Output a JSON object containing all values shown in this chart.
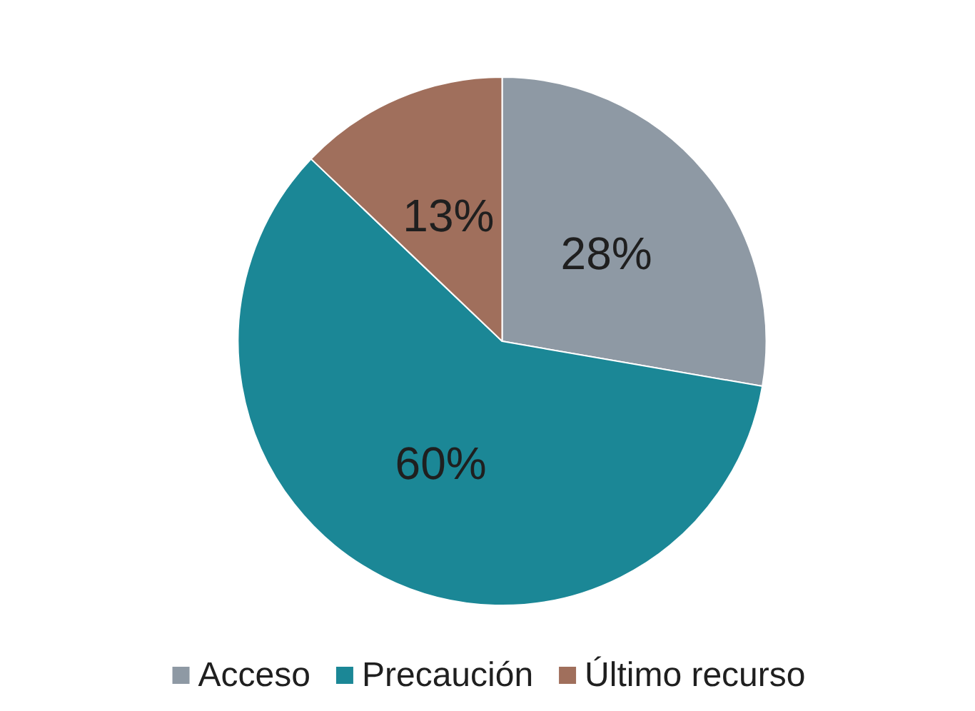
{
  "chart_data": {
    "type": "pie",
    "categories": [
      "Acceso",
      "Precaución",
      "Último recurso"
    ],
    "values": [
      28,
      60,
      13
    ],
    "value_labels": [
      "28%",
      "60%",
      "13%"
    ],
    "colors": [
      "#8e99a4",
      "#1b8796",
      "#a06f5c"
    ],
    "legend": "bottom"
  }
}
